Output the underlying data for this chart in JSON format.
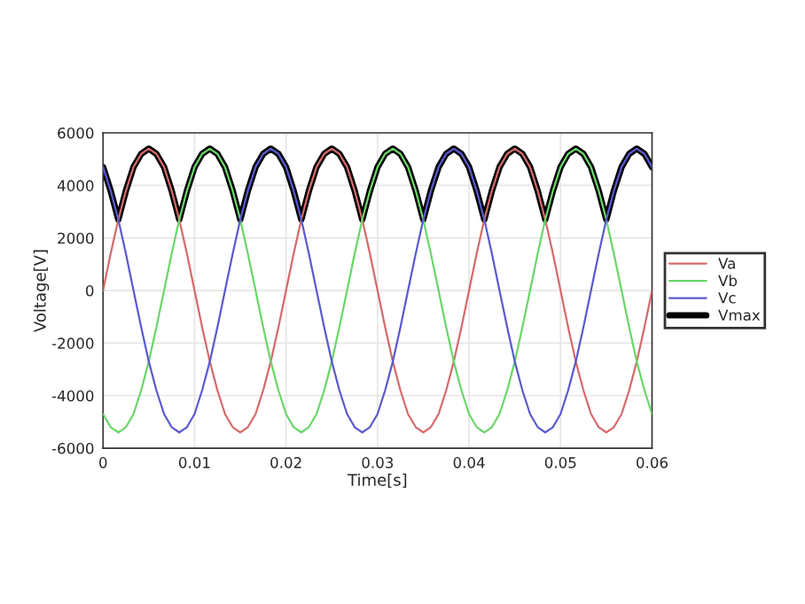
{
  "chart_data": {
    "type": "line",
    "xlabel": "Time[s]",
    "ylabel": "Voltage[V]",
    "x": [
      0,
      0.00083,
      0.00167,
      0.0025,
      0.00333,
      0.00417,
      0.005,
      0.00583,
      0.00667,
      0.0075,
      0.00833,
      0.00917,
      0.01,
      0.01083,
      0.01167,
      0.0125,
      0.01333,
      0.01417,
      0.015,
      0.01583,
      0.01667,
      0.0175,
      0.01833,
      0.01917,
      0.02,
      0.02083,
      0.02167,
      0.0225,
      0.02333,
      0.02417,
      0.025,
      0.02583,
      0.02667,
      0.0275,
      0.02833,
      0.02917,
      0.03,
      0.03083,
      0.03167,
      0.0325,
      0.03333,
      0.03417,
      0.035,
      0.03583,
      0.03667,
      0.0375,
      0.03833,
      0.03917,
      0.04,
      0.04083,
      0.04167,
      0.0425,
      0.04333,
      0.04417,
      0.045,
      0.04583,
      0.04667,
      0.0475,
      0.04833,
      0.04917,
      0.05,
      0.05083,
      0.05167,
      0.0525,
      0.05333,
      0.05417,
      0.055,
      0.05583,
      0.05667,
      0.0575,
      0.05833,
      0.05917,
      0.06
    ],
    "series": [
      {
        "name": "Va",
        "color": "#d66a6a",
        "values": [
          0,
          1400,
          2700,
          3800,
          4700,
          5200,
          5400,
          5200,
          4700,
          3800,
          2700,
          1400,
          0,
          -1400,
          -2700,
          -3800,
          -4700,
          -5200,
          -5400,
          -5200,
          -4700,
          -3800,
          -2700,
          -1400,
          0,
          1400,
          2700,
          3800,
          4700,
          5200,
          5400,
          5200,
          4700,
          3800,
          2700,
          1400,
          0,
          -1400,
          -2700,
          -3800,
          -4700,
          -5200,
          -5400,
          -5200,
          -4700,
          -3800,
          -2700,
          -1400,
          0,
          1400,
          2700,
          3800,
          4700,
          5200,
          5400,
          5200,
          4700,
          3800,
          2700,
          1400,
          0,
          -1400,
          -2700,
          -3800,
          -4700,
          -5200,
          -5400,
          -5200,
          -4700,
          -3800,
          -2700,
          -1400,
          0
        ]
      },
      {
        "name": "Vb",
        "color": "#6ad66a",
        "values": [
          -4700,
          -5200,
          -5400,
          -5200,
          -4700,
          -3800,
          -2700,
          -1400,
          0,
          1400,
          2700,
          3800,
          4700,
          5200,
          5400,
          5200,
          4700,
          3800,
          2700,
          1400,
          0,
          -1400,
          -2700,
          -3800,
          -4700,
          -5200,
          -5400,
          -5200,
          -4700,
          -3800,
          -2700,
          -1400,
          0,
          1400,
          2700,
          3800,
          4700,
          5200,
          5400,
          5200,
          4700,
          3800,
          2700,
          1400,
          0,
          -1400,
          -2700,
          -3800,
          -4700,
          -5200,
          -5400,
          -5200,
          -4700,
          -3800,
          -2700,
          -1400,
          0,
          1400,
          2700,
          3800,
          4700,
          5200,
          5400,
          5200,
          4700,
          3800,
          2700,
          1400,
          0,
          -1400,
          -2700,
          -3800,
          -4700
        ]
      },
      {
        "name": "Vc",
        "color": "#5a5ad0",
        "values": [
          4700,
          3800,
          2700,
          1400,
          0,
          -1400,
          -2700,
          -3800,
          -4700,
          -5200,
          -5400,
          -5200,
          -4700,
          -3800,
          -2700,
          -1400,
          0,
          1400,
          2700,
          3800,
          4700,
          5200,
          5400,
          5200,
          4700,
          3800,
          2700,
          1400,
          0,
          -1400,
          -2700,
          -3800,
          -4700,
          -5200,
          -5400,
          -5200,
          -4700,
          -3800,
          -2700,
          -1400,
          0,
          1400,
          2700,
          3800,
          4700,
          5200,
          5400,
          5200,
          4700,
          3800,
          2700,
          1400,
          0,
          -1400,
          -2700,
          -3800,
          -4700,
          -5200,
          -5400,
          -5200,
          -4700,
          -3800,
          -2700,
          -1400,
          0,
          1400,
          2700,
          3800,
          4700,
          5200,
          5400,
          5200,
          4700
        ]
      },
      {
        "name": "Vmax",
        "color": "#000000",
        "values": [
          4700,
          3800,
          2700,
          3800,
          4700,
          5200,
          5400,
          5200,
          4700,
          3800,
          2700,
          3800,
          4700,
          5200,
          5400,
          5200,
          4700,
          3800,
          2700,
          3800,
          4700,
          5200,
          5400,
          5200,
          4700,
          3800,
          2700,
          3800,
          4700,
          5200,
          5400,
          5200,
          4700,
          3800,
          2700,
          3800,
          4700,
          5200,
          5400,
          5200,
          4700,
          3800,
          2700,
          3800,
          4700,
          5200,
          5400,
          5200,
          4700,
          3800,
          2700,
          3800,
          4700,
          5200,
          5400,
          5200,
          4700,
          3800,
          2700,
          3800,
          4700,
          5200,
          5400,
          5200,
          4700,
          3800,
          2700,
          3800,
          4700,
          5200,
          5400,
          5200,
          4700
        ]
      }
    ],
    "xlim": [
      0,
      0.06
    ],
    "xticks": [
      0,
      0.01,
      0.02,
      0.03,
      0.04,
      0.05,
      0.06
    ],
    "ylim": [
      -6000,
      6000
    ],
    "yticks": [
      -6000,
      -4000,
      -2000,
      0,
      2000,
      4000,
      6000
    ],
    "grid": true,
    "legend": "right"
  }
}
